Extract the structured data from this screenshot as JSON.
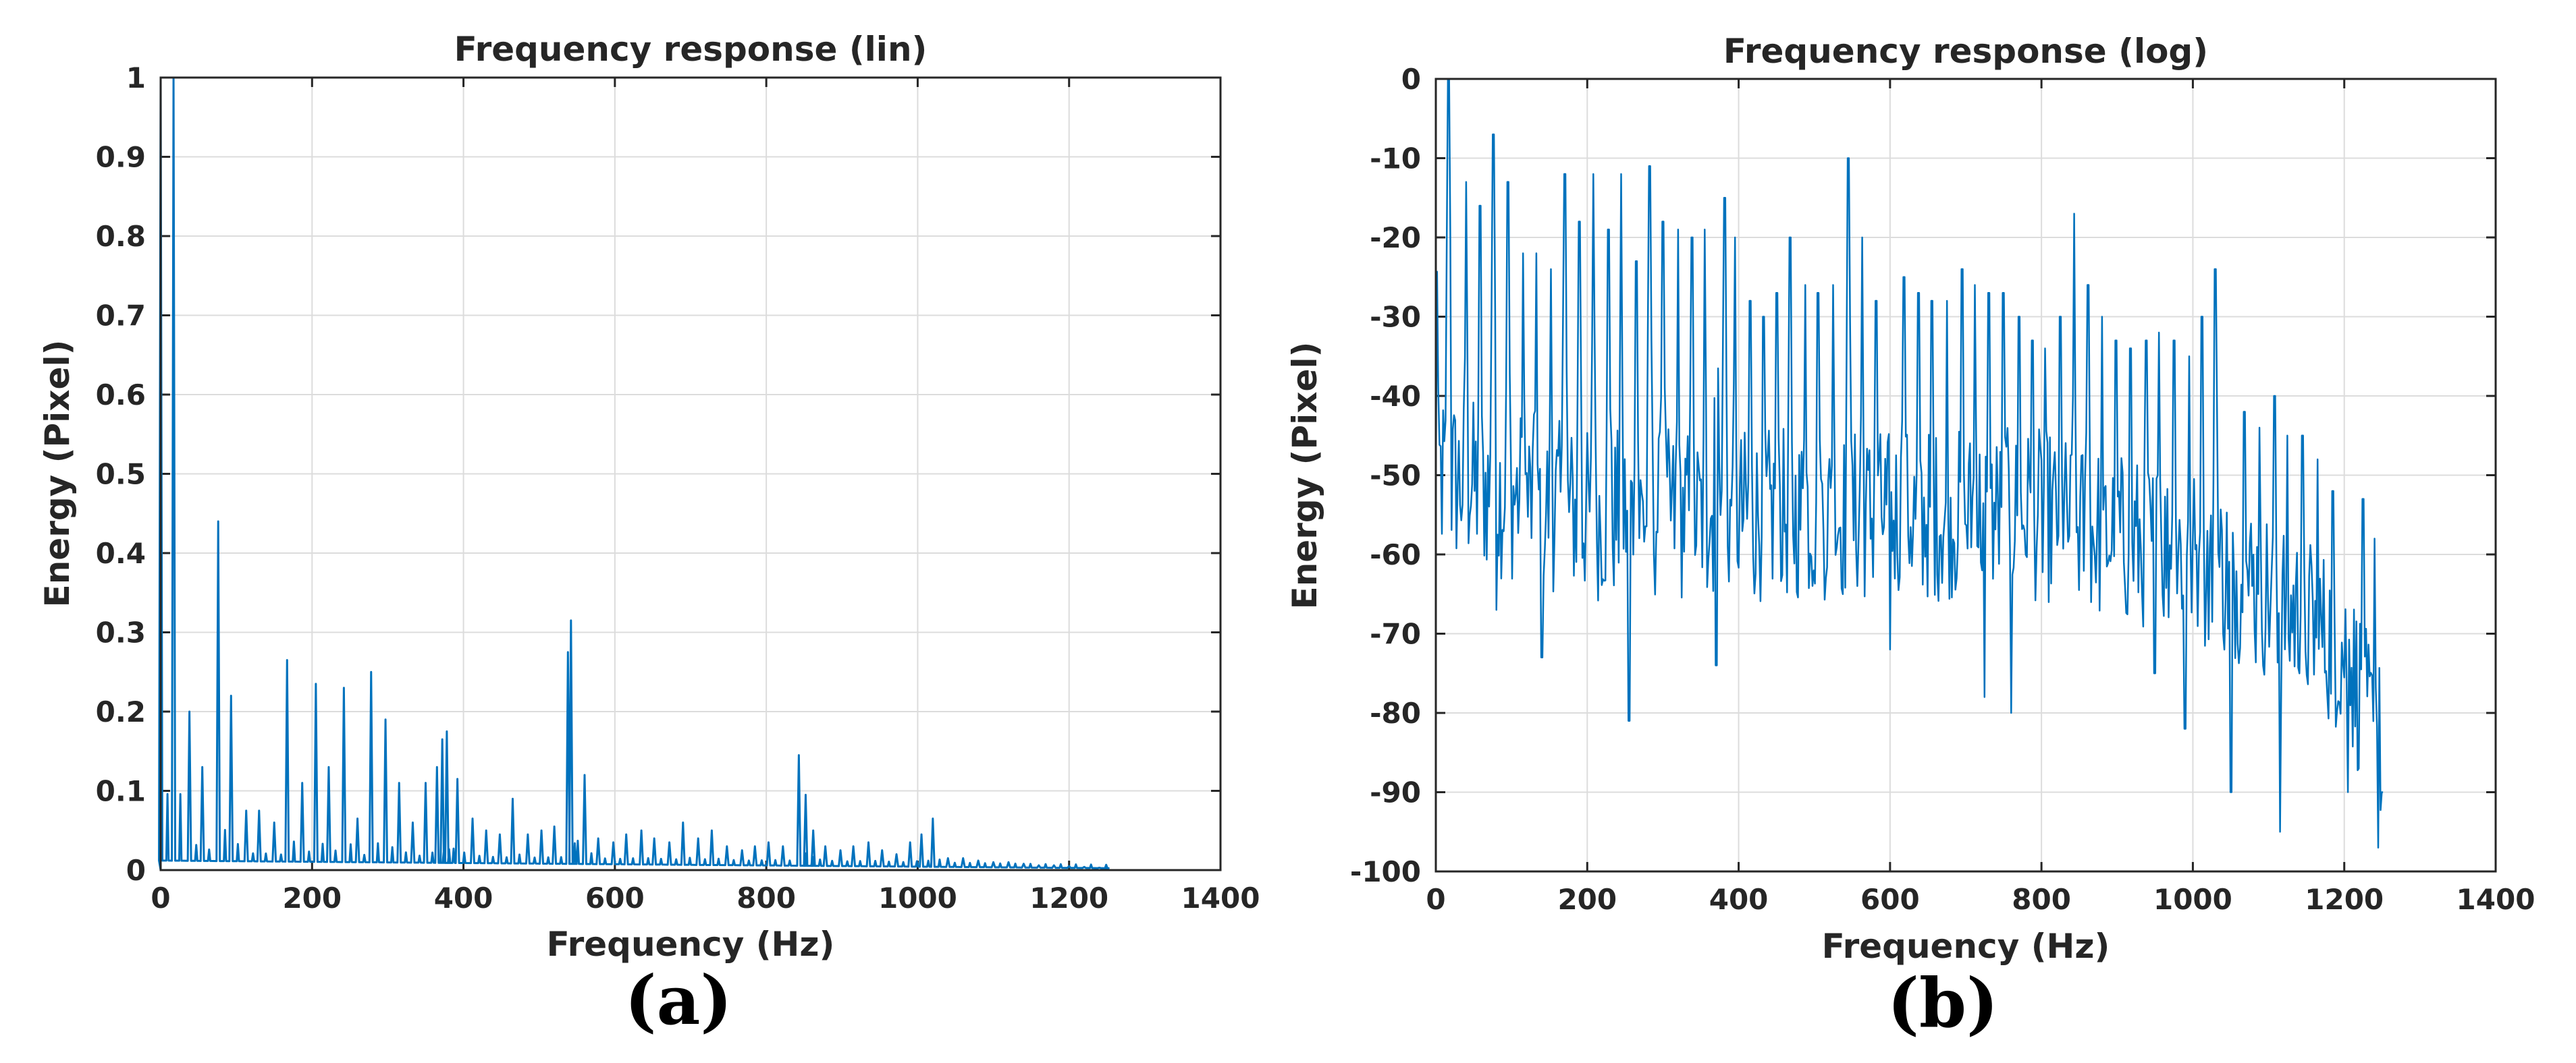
{
  "chart_data": [
    {
      "type": "line",
      "title": "Frequency response (lin)",
      "xlabel": "Frequency (Hz)",
      "ylabel": "Energy (Pixel)",
      "xlim": [
        0,
        1400
      ],
      "ylim": [
        0,
        1
      ],
      "xticks": [
        0,
        200,
        400,
        600,
        800,
        1000,
        1200,
        1400
      ],
      "xtick_labels": [
        "0",
        "200",
        "400",
        "600",
        "800",
        "1000",
        "1200",
        "1400"
      ],
      "yticks": [
        0,
        0.1,
        0.2,
        0.3,
        0.4,
        0.5,
        0.6,
        0.7,
        0.8,
        0.9,
        1
      ],
      "ytick_labels": [
        "0",
        "0.1",
        "0.2",
        "0.3",
        "0.4",
        "0.5",
        "0.6",
        "0.7",
        "0.8",
        "0.9",
        "1"
      ],
      "grid": true,
      "line_color": "#0072BD",
      "caption": "(a)",
      "series": [
        {
          "peaks": [
            [
              0,
              1.0
            ],
            [
              17,
              1.0
            ],
            [
              38,
              0.2
            ],
            [
              55,
              0.13
            ],
            [
              76,
              0.44
            ],
            [
              93,
              0.22
            ],
            [
              113,
              0.075
            ],
            [
              130,
              0.075
            ],
            [
              150,
              0.06
            ],
            [
              167,
              0.265
            ],
            [
              187,
              0.11
            ],
            [
              205,
              0.235
            ],
            [
              222,
              0.13
            ],
            [
              242,
              0.23
            ],
            [
              260,
              0.065
            ],
            [
              278,
              0.25
            ],
            [
              297,
              0.19
            ],
            [
              315,
              0.11
            ],
            [
              333,
              0.06
            ],
            [
              350,
              0.11
            ],
            [
              365,
              0.13
            ],
            [
              372,
              0.165
            ],
            [
              378,
              0.175
            ],
            [
              392,
              0.115
            ],
            [
              412,
              0.065
            ],
            [
              430,
              0.05
            ],
            [
              448,
              0.045
            ],
            [
              465,
              0.09
            ],
            [
              485,
              0.045
            ],
            [
              503,
              0.05
            ],
            [
              520,
              0.055
            ],
            [
              538,
              0.275
            ],
            [
              542,
              0.315
            ],
            [
              560,
              0.12
            ],
            [
              578,
              0.04
            ],
            [
              598,
              0.035
            ],
            [
              615,
              0.045
            ],
            [
              635,
              0.05
            ],
            [
              652,
              0.04
            ],
            [
              672,
              0.035
            ],
            [
              690,
              0.06
            ],
            [
              710,
              0.04
            ],
            [
              728,
              0.05
            ],
            [
              748,
              0.03
            ],
            [
              768,
              0.025
            ],
            [
              785,
              0.03
            ],
            [
              803,
              0.035
            ],
            [
              822,
              0.03
            ],
            [
              843,
              0.145
            ],
            [
              852,
              0.095
            ],
            [
              862,
              0.05
            ],
            [
              878,
              0.03
            ],
            [
              898,
              0.025
            ],
            [
              915,
              0.03
            ],
            [
              935,
              0.035
            ],
            [
              953,
              0.025
            ],
            [
              972,
              0.02
            ],
            [
              990,
              0.035
            ],
            [
              1005,
              0.045
            ],
            [
              1020,
              0.065
            ],
            [
              1040,
              0.015
            ],
            [
              1060,
              0.015
            ],
            [
              1080,
              0.012
            ],
            [
              1100,
              0.01
            ],
            [
              1120,
              0.01
            ],
            [
              1140,
              0.008
            ],
            [
              1160,
              0.006
            ],
            [
              1180,
              0.006
            ],
            [
              1200,
              0.005
            ],
            [
              1220,
              0.004
            ],
            [
              1240,
              0.003
            ],
            [
              1250,
              0.003
            ]
          ]
        }
      ]
    },
    {
      "type": "line",
      "title": "Frequency response (log)",
      "xlabel": "Frequency (Hz)",
      "ylabel": "Energy (Pixel)",
      "xlim": [
        0,
        1400
      ],
      "ylim": [
        -100,
        0
      ],
      "xticks": [
        0,
        200,
        400,
        600,
        800,
        1000,
        1200,
        1400
      ],
      "xtick_labels": [
        "0",
        "200",
        "400",
        "600",
        "800",
        "1000",
        "1200",
        "1400"
      ],
      "yticks": [
        -100,
        -90,
        -80,
        -70,
        -60,
        -50,
        -40,
        -30,
        -20,
        -10,
        0
      ],
      "ytick_labels": [
        "-100",
        "-90",
        "-80",
        "-70",
        "-60",
        "-50",
        "-40",
        "-30",
        "-20",
        "-10",
        "0"
      ],
      "grid": true,
      "line_color": "#0072BD",
      "caption": "(b)",
      "series": [
        {
          "peaks": [
            [
              0,
              0
            ],
            [
              17,
              0
            ],
            [
              40,
              -13
            ],
            [
              58,
              -16
            ],
            [
              76,
              -7
            ],
            [
              95,
              -13
            ],
            [
              115,
              -22
            ],
            [
              133,
              -22
            ],
            [
              152,
              -24
            ],
            [
              170,
              -12
            ],
            [
              190,
              -18
            ],
            [
              208,
              -12
            ],
            [
              228,
              -19
            ],
            [
              245,
              -12
            ],
            [
              265,
              -23
            ],
            [
              282,
              -11
            ],
            [
              300,
              -18
            ],
            [
              320,
              -19
            ],
            [
              338,
              -20
            ],
            [
              355,
              -19
            ],
            [
              370,
              -16
            ],
            [
              382,
              -15
            ],
            [
              395,
              -20
            ],
            [
              415,
              -28
            ],
            [
              433,
              -30
            ],
            [
              450,
              -27
            ],
            [
              468,
              -20
            ],
            [
              488,
              -26
            ],
            [
              505,
              -27
            ],
            [
              525,
              -26
            ],
            [
              545,
              -10
            ],
            [
              563,
              -20
            ],
            [
              582,
              -28
            ],
            [
              600,
              -27
            ],
            [
              618,
              -25
            ],
            [
              638,
              -27
            ],
            [
              655,
              -28
            ],
            [
              675,
              -28
            ],
            [
              695,
              -24
            ],
            [
              712,
              -26
            ],
            [
              730,
              -27
            ],
            [
              750,
              -27
            ],
            [
              770,
              -30
            ],
            [
              788,
              -33
            ],
            [
              805,
              -34
            ],
            [
              825,
              -30
            ],
            [
              843,
              -17
            ],
            [
              862,
              -26
            ],
            [
              880,
              -30
            ],
            [
              898,
              -33
            ],
            [
              918,
              -34
            ],
            [
              938,
              -33
            ],
            [
              955,
              -32
            ],
            [
              975,
              -33
            ],
            [
              995,
              -35
            ],
            [
              1012,
              -30
            ],
            [
              1030,
              -24
            ],
            [
              1050,
              -38
            ],
            [
              1068,
              -42
            ],
            [
              1088,
              -44
            ],
            [
              1108,
              -40
            ],
            [
              1125,
              -45
            ],
            [
              1145,
              -45
            ],
            [
              1165,
              -48
            ],
            [
              1185,
              -52
            ],
            [
              1205,
              -52
            ],
            [
              1225,
              -53
            ],
            [
              1240,
              -58
            ],
            [
              1250,
              -76
            ]
          ],
          "noise_floor": [
            [
              0,
              -50
            ],
            [
              200,
              -55
            ],
            [
              400,
              -55
            ],
            [
              600,
              -55
            ],
            [
              800,
              -55
            ],
            [
              900,
              -58
            ],
            [
              1000,
              -60
            ],
            [
              1100,
              -65
            ],
            [
              1200,
              -72
            ],
            [
              1250,
              -85
            ]
          ],
          "minima": [
            [
              0,
              -50
            ],
            [
              80,
              -67
            ],
            [
              140,
              -73
            ],
            [
              255,
              -81
            ],
            [
              370,
              -74
            ],
            [
              600,
              -72
            ],
            [
              725,
              -78
            ],
            [
              760,
              -80
            ],
            [
              950,
              -75
            ],
            [
              990,
              -82
            ],
            [
              1050,
              -90
            ],
            [
              1115,
              -95
            ],
            [
              1205,
              -90
            ],
            [
              1245,
              -97
            ],
            [
              1250,
              -90
            ]
          ]
        }
      ]
    }
  ]
}
